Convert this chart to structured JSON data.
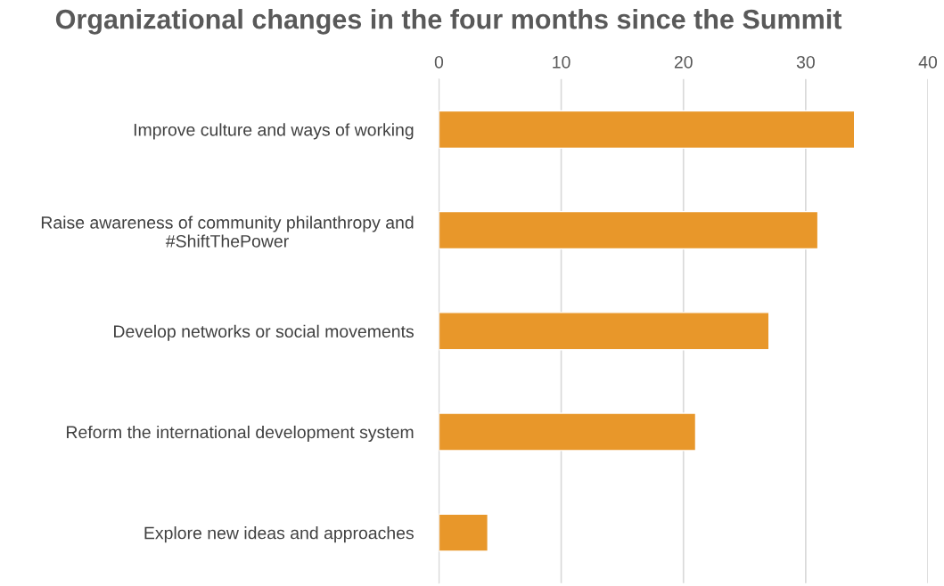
{
  "chart_data": {
    "type": "bar",
    "orientation": "horizontal",
    "title": "Organizational changes in the four months since the Summit",
    "categories": [
      "Improve culture and ways of working",
      "Raise awareness of community philanthropy and\n#ShiftThePower",
      "Develop networks or social movements",
      "Reform the international development system",
      "Explore new ideas and approaches"
    ],
    "values": [
      34,
      31,
      27,
      21,
      4
    ],
    "color": "#e8972a",
    "xlim": [
      0,
      40
    ],
    "xticks": [
      0,
      10,
      20,
      30,
      40
    ],
    "grid": "x",
    "legend": false
  }
}
